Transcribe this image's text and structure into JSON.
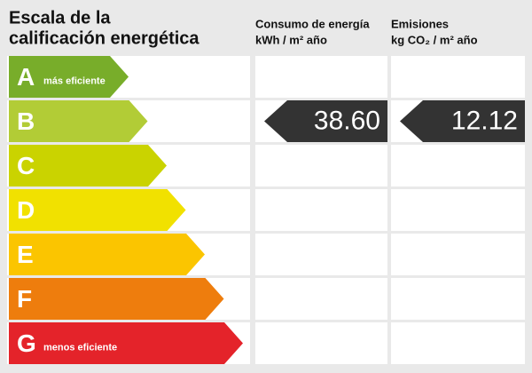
{
  "header": {
    "title_lines": [
      "Escala de la",
      "calificación energética"
    ],
    "columns": [
      {
        "title": "Consumo de energía",
        "unit": "kWh / m² año"
      },
      {
        "title": "Emisiones",
        "unit": "kg CO₂ / m² año"
      }
    ]
  },
  "ratings": [
    {
      "letter": "A",
      "note": "más eficiente",
      "color": "#78ad2a"
    },
    {
      "letter": "B",
      "color": "#b2cc36",
      "consumption": "38.60",
      "emissions": "12.12"
    },
    {
      "letter": "C",
      "color": "#cad300"
    },
    {
      "letter": "D",
      "color": "#f1e100"
    },
    {
      "letter": "E",
      "color": "#fbc500"
    },
    {
      "letter": "F",
      "color": "#ee7d0d"
    },
    {
      "letter": "G",
      "note": "menos eficiente",
      "color": "#e4232a"
    }
  ],
  "marker_color": "#333333"
}
